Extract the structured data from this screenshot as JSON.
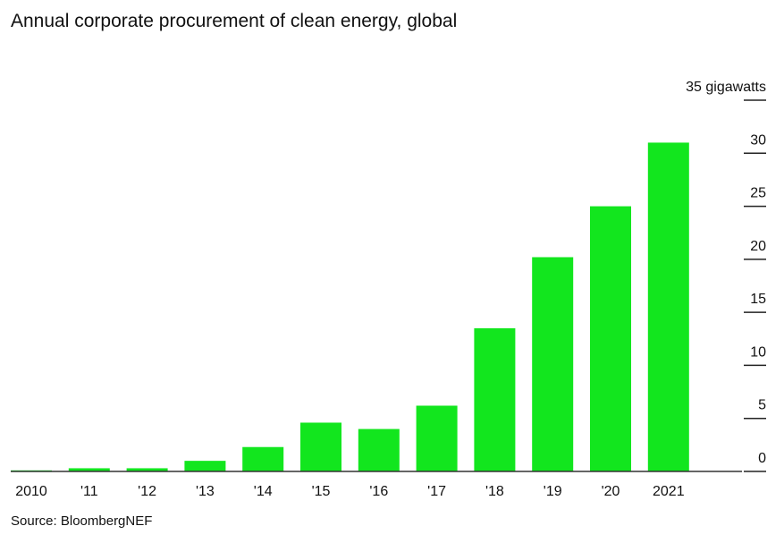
{
  "chart_data": {
    "type": "bar",
    "title": "Annual corporate procurement of clean energy, global",
    "ylabel": "gigawatts",
    "top_tick_label": "35 gigawatts",
    "categories": [
      "2010",
      "'11",
      "'12",
      "'13",
      "'14",
      "'15",
      "'16",
      "'17",
      "'18",
      "'19",
      "'20",
      "2021"
    ],
    "values": [
      0.1,
      0.3,
      0.3,
      1.0,
      2.3,
      4.6,
      4.0,
      6.2,
      13.5,
      20.2,
      25.0,
      31.0
    ],
    "ylim": [
      0,
      35
    ],
    "yticks": [
      0,
      5,
      10,
      15,
      20,
      25,
      30,
      35
    ],
    "y_axis_side": "right",
    "grid": false,
    "bar_color": "#12e61e",
    "source": "Source: BloombergNEF"
  }
}
